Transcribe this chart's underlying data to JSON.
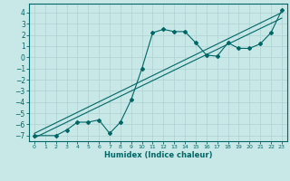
{
  "title": "",
  "xlabel": "Humidex (Indice chaleur)",
  "ylabel": "",
  "bg_color": "#c8e8e8",
  "grid_color": "#afd0d0",
  "line_color": "#006666",
  "xlim": [
    -0.5,
    23.5
  ],
  "ylim": [
    -7.5,
    4.8
  ],
  "xticks": [
    0,
    1,
    2,
    3,
    4,
    5,
    6,
    7,
    8,
    9,
    10,
    11,
    12,
    13,
    14,
    15,
    16,
    17,
    18,
    19,
    20,
    21,
    22,
    23
  ],
  "yticks": [
    -7,
    -6,
    -5,
    -4,
    -3,
    -2,
    -1,
    0,
    1,
    2,
    3,
    4
  ],
  "main_x": [
    0,
    2,
    3,
    4,
    5,
    6,
    7,
    8,
    9,
    10,
    11,
    12,
    13,
    14,
    15,
    16,
    17,
    18,
    19,
    20,
    21,
    22,
    23
  ],
  "main_y": [
    -7.0,
    -7.0,
    -6.5,
    -5.8,
    -5.8,
    -5.6,
    -6.8,
    -5.8,
    -3.8,
    -1.0,
    2.2,
    2.5,
    2.3,
    2.3,
    1.3,
    0.2,
    0.1,
    1.3,
    0.8,
    0.8,
    1.2,
    2.2,
    4.2
  ],
  "trend1_x": [
    0,
    23
  ],
  "trend1_y": [
    -6.8,
    4.0
  ],
  "trend2_x": [
    0,
    23
  ],
  "trend2_y": [
    -7.2,
    3.5
  ]
}
